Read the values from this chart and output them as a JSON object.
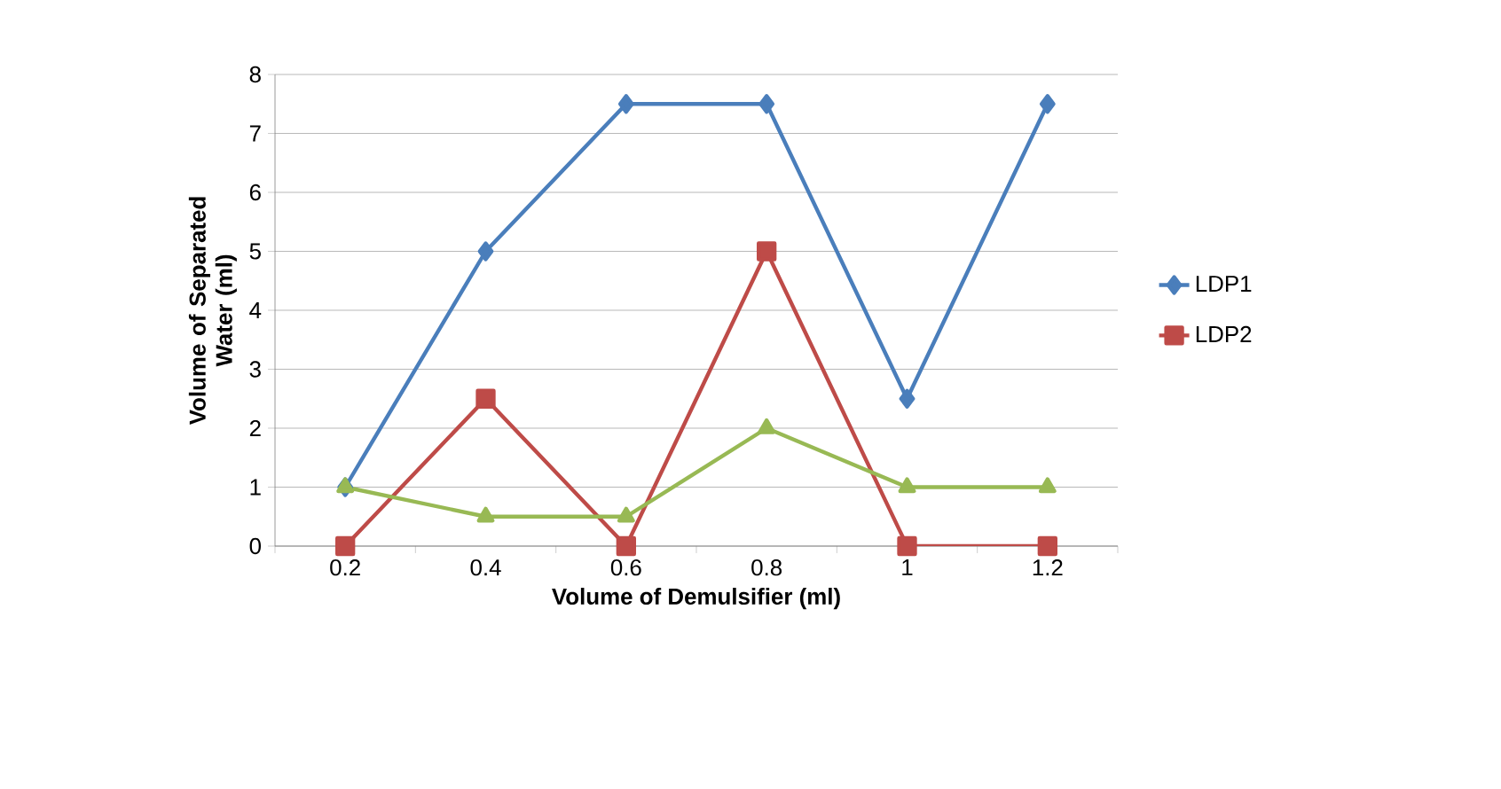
{
  "chart_data": {
    "type": "line",
    "xlabel": "Volume of Demulsifier (ml)",
    "ylabel": "Volume of Separated Water (ml)",
    "categories": [
      "0.2",
      "0.4",
      "0.6",
      "0.8",
      "1",
      "1.2"
    ],
    "series": [
      {
        "name": "LDP1",
        "color": "#4a7ebb",
        "marker": "diamond",
        "values": [
          1,
          5,
          7.5,
          7.5,
          2.5,
          7.5
        ]
      },
      {
        "name": "LDP2",
        "color": "#be4b48",
        "marker": "square",
        "values": [
          0,
          2.5,
          0,
          5,
          0,
          0
        ]
      },
      {
        "color": "#98b954",
        "marker": "triangle",
        "values": [
          1,
          0.5,
          0.5,
          2,
          1,
          1
        ]
      }
    ],
    "ylim": [
      0,
      8
    ],
    "yticks": [
      0,
      1,
      2,
      3,
      4,
      5,
      6,
      7,
      8
    ],
    "grid": "y",
    "legend": "right",
    "line_style": "solid"
  }
}
